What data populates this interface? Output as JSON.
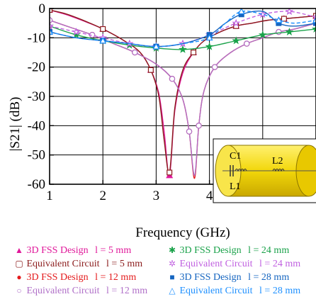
{
  "chart_data": {
    "type": "line",
    "xlabel": "Frequency (GHz)",
    "ylabel": "|S21| (dB)",
    "xlim": [
      1,
      6
    ],
    "ylim": [
      -60,
      0
    ],
    "x_ticks": [
      "1",
      "2",
      "3",
      "4",
      "5",
      "6"
    ],
    "y_ticks": [
      "0",
      "-10",
      "-20",
      "-30",
      "-40",
      "-50",
      "-60"
    ],
    "grid": true,
    "legend_position": "bottom",
    "series": [
      {
        "name": "3D FSS Design",
        "param": "l = 5 mm",
        "color": "#e0189a",
        "marker": "triangle",
        "dash": false,
        "x": [
          1.0,
          1.3,
          1.6,
          2.0,
          2.4,
          2.7,
          2.9,
          3.05,
          3.15,
          3.25,
          3.35,
          3.5,
          3.7,
          3.9,
          4.2,
          4.5,
          4.8,
          5.1,
          5.4,
          5.7,
          6.0
        ],
        "y": [
          -0.5,
          -2,
          -4,
          -7,
          -11,
          -15,
          -21,
          -29,
          -42,
          -57,
          -35,
          -22,
          -15,
          -11,
          -8,
          -6,
          -5,
          -4,
          -3.5,
          -3,
          -2.5
        ]
      },
      {
        "name": "Equivalent Circuit",
        "param": "l = 5 mm",
        "color": "#8b1c1c",
        "marker": "square-open",
        "dash": false,
        "x": [
          1.0,
          1.3,
          1.6,
          2.0,
          2.4,
          2.7,
          2.9,
          3.05,
          3.15,
          3.25,
          3.35,
          3.5,
          3.7,
          3.9,
          4.2,
          4.5,
          4.8,
          5.1,
          5.4,
          5.7,
          6.0
        ],
        "y": [
          -0.5,
          -1.8,
          -3.8,
          -7,
          -11,
          -15,
          -21,
          -30,
          -45,
          -56,
          -34,
          -21,
          -15,
          -11,
          -8,
          -6,
          -5,
          -4,
          -3.5,
          -3,
          -2.5
        ]
      },
      {
        "name": "3D FSS Design",
        "param": "l = 12 mm",
        "color": "#e41a1c",
        "marker": "dot",
        "dash": false,
        "x": [
          1.0,
          1.4,
          1.8,
          2.2,
          2.6,
          3.0,
          3.3,
          3.5,
          3.62,
          3.72,
          3.8,
          3.9,
          4.1,
          4.4,
          4.7,
          5.0,
          5.3,
          5.6,
          6.0
        ],
        "y": [
          -4,
          -6.5,
          -9,
          -12,
          -15,
          -19,
          -24,
          -31,
          -42,
          -58,
          -40,
          -28,
          -20,
          -15,
          -12,
          -10,
          -8,
          -7,
          -5
        ]
      },
      {
        "name": "Equivalent Circuit",
        "param": "l = 12 mm",
        "color": "#b070c8",
        "marker": "circle-open",
        "dash": false,
        "x": [
          1.0,
          1.4,
          1.8,
          2.2,
          2.6,
          3.0,
          3.3,
          3.5,
          3.62,
          3.72,
          3.8,
          3.9,
          4.1,
          4.4,
          4.7,
          5.0,
          5.3,
          5.6,
          6.0
        ],
        "y": [
          -4,
          -6.5,
          -9,
          -12,
          -15,
          -19,
          -24,
          -31,
          -42,
          -57,
          -40,
          -28,
          -20,
          -15,
          -12,
          -10,
          -8,
          -7,
          -5
        ]
      },
      {
        "name": "3D FSS Design",
        "param": "l = 24 mm",
        "color": "#1aa24a",
        "marker": "star",
        "dash": false,
        "x": [
          1.0,
          1.5,
          2.0,
          2.5,
          3.0,
          3.5,
          4.0,
          4.5,
          5.0,
          5.5,
          6.0
        ],
        "y": [
          -6,
          -9,
          -11,
          -12.5,
          -13.5,
          -14,
          -13,
          -11,
          -9,
          -8,
          -7
        ]
      },
      {
        "name": "Equivalent Circuit",
        "param": "l = 24 mm",
        "color": "#c060e0",
        "marker": "star-open",
        "dash": true,
        "x": [
          1.0,
          1.5,
          2.0,
          2.5,
          3.0,
          3.5,
          4.0,
          4.5,
          5.0,
          5.5,
          6.0
        ],
        "y": [
          -6,
          -8,
          -10,
          -12,
          -13,
          -12,
          -9,
          -5,
          -2,
          -1,
          -3
        ]
      },
      {
        "name": "3D FSS Design",
        "param": "l = 28 mm",
        "color": "#1565c0",
        "marker": "square",
        "dash": false,
        "x": [
          1.0,
          1.5,
          2.0,
          2.5,
          3.0,
          3.5,
          4.0,
          4.3,
          4.6,
          5.0,
          5.3,
          5.6,
          6.0
        ],
        "y": [
          -8,
          -10,
          -11,
          -12,
          -13,
          -12,
          -9,
          -5,
          -2,
          -1,
          -5,
          -6,
          -5
        ]
      },
      {
        "name": "Equivalent Circuit",
        "param": "l = 28 mm",
        "color": "#1e90ff",
        "marker": "triangle-open",
        "dash": true,
        "x": [
          1.0,
          1.5,
          2.0,
          2.5,
          3.0,
          3.5,
          4.0,
          4.3,
          4.6,
          5.0,
          5.3,
          5.6,
          6.0
        ],
        "y": [
          -8,
          -10,
          -11,
          -12,
          -13,
          -12,
          -10,
          -5,
          -1,
          -2,
          -4,
          -5,
          -4
        ]
      }
    ],
    "inset": {
      "labels": [
        "C1",
        "L1",
        "L2"
      ]
    }
  },
  "legend": {
    "items": [
      {
        "marker": "▲",
        "color": "#e0189a",
        "name": "3D FSS Design",
        "param": "l = 5 mm"
      },
      {
        "marker": "▢",
        "color": "#8b1c1c",
        "name": "Equivalent Circuit",
        "param": "l = 5 mm"
      },
      {
        "marker": "●",
        "color": "#e41a1c",
        "name": "3D FSS Design",
        "param": "l = 12 mm"
      },
      {
        "marker": "○",
        "color": "#b070c8",
        "name": "Equivalent Circuit",
        "param": "l = 12 mm"
      },
      {
        "marker": "✱",
        "color": "#1aa24a",
        "name": "3D FSS Design",
        "param": "l = 24 mm"
      },
      {
        "marker": "✲",
        "color": "#c060e0",
        "name": "Equivalent Circuit",
        "param": "l = 24 mm"
      },
      {
        "marker": "■",
        "color": "#1565c0",
        "name": "3D FSS Design",
        "param": "l = 28 mm"
      },
      {
        "marker": "△",
        "color": "#1e90ff",
        "name": "Equivalent Circuit",
        "param": "l = 28 mm"
      }
    ]
  }
}
